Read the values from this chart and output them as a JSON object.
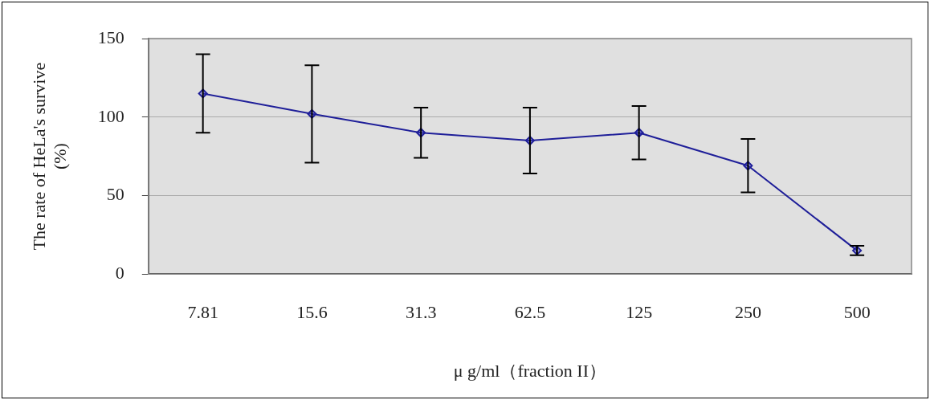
{
  "chart_data": {
    "type": "line",
    "xlabel": "μ g/ml（fraction II）",
    "ylabel": "The rate of HeLa's survive\n(%)",
    "categories": [
      "7.81",
      "15.6",
      "31.3",
      "62.5",
      "125",
      "250",
      "500"
    ],
    "series": [
      {
        "color": "#1f1f99",
        "values": [
          115,
          102,
          90,
          85,
          90,
          69,
          15
        ],
        "errors": [
          25,
          31,
          16,
          21,
          17,
          17,
          3
        ]
      }
    ],
    "ylim": [
      0,
      150
    ],
    "yticks": [
      0,
      50,
      100,
      150
    ],
    "grid": "y",
    "legend": false,
    "marker": "diamond",
    "line_style": "solid"
  }
}
